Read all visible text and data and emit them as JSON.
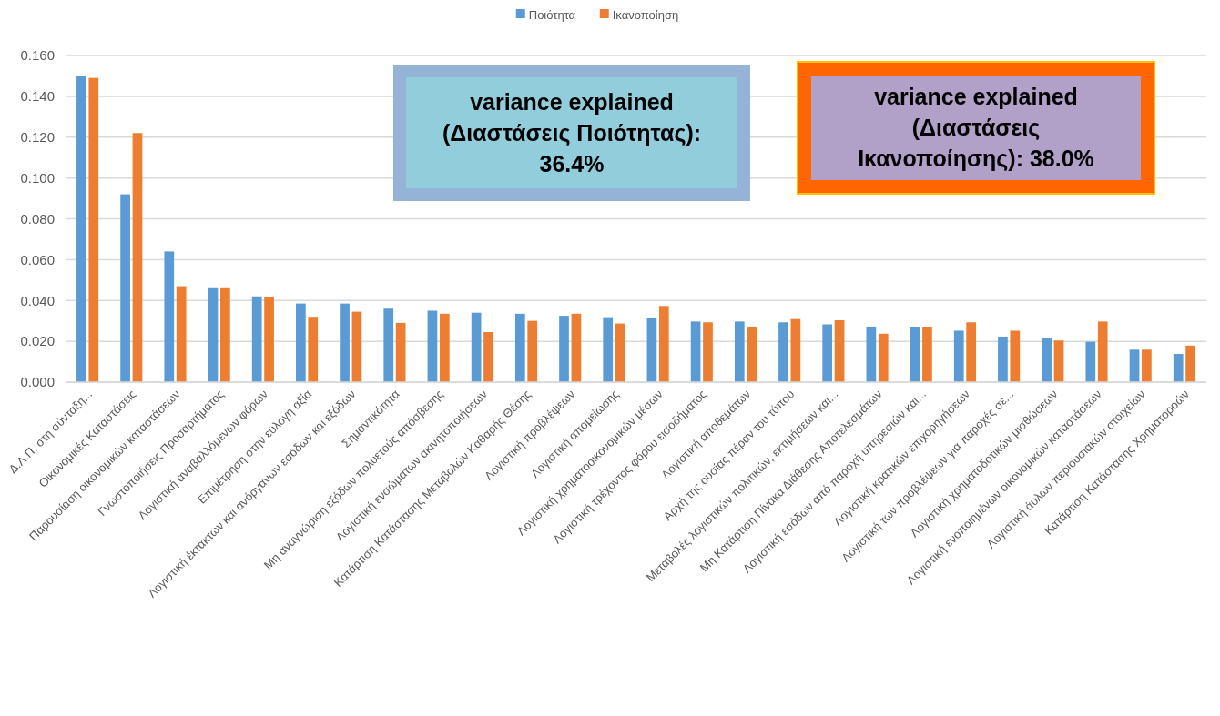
{
  "chart_data": {
    "type": "bar",
    "categories": [
      "Δ.Λ.Π. στη σύνταξη...",
      "Οικονομικές Καταστάσεις",
      "Παρουσίαση οικονομικών καταστάσεων",
      "Γνωστοποιήσεις Προσαρτήματος",
      "Λογιστική αναβαλλόμενων φόρων",
      "Επιμέτρηση στην εύλογη αξία",
      "Λογιστική έκτακτων και ανόργανων εσόδων και εξόδων",
      "Σημαντικότητα",
      "Μη αναγνώριση εξόδων πολυετούς απόσβεσης",
      "Λογιστική ενσώματων ακινητοποιήσεων",
      "Κατάρτιση Κατάστασης Μεταβολών Καθαρής Θέσης",
      "Λογιστική προβλέψεων",
      "Λογιστική απομείωσης",
      "Λογιστική χρηματοοικονομικών μέσων",
      "Λογιστική τρέχοντος φόρου εισοδήματος",
      "Λογιστική αποθεμάτων",
      "Αρχή της ουσίας πέραν του τύπου",
      "Μεταβολές λογιστικών πολιτικών, εκτιμήσεων και...",
      "Μη Κατάρτιση Πίνακα Διάθεσης Αποτελεσμάτων",
      "Λογιστική εσόδων από παροχή υπηρεσιών και...",
      "Λογιστική κρατικών επιχορηγήσεων",
      "Λογιστική των προβλέψεων για παροχές σε...",
      "Λογιστική χρηματοδοτικών μισθώσεων",
      "Λογιστική ενοποιημένων οικονομικών καταστάσεων",
      "Λογιστική άυλων περιουσιακών στοιχείων",
      "Κατάρτιση Κατάστασης Χρηματοροών"
    ],
    "series": [
      {
        "name": "Ποιότητα",
        "color": "#5b9bd5",
        "values": [
          0.15,
          0.092,
          0.064,
          0.046,
          0.042,
          0.0385,
          0.0385,
          0.036,
          0.035,
          0.034,
          0.0335,
          0.0325,
          0.0318,
          0.0313,
          0.0297,
          0.0297,
          0.0293,
          0.0283,
          0.0272,
          0.0272,
          0.0252,
          0.0223,
          0.0214,
          0.0198,
          0.0159,
          0.0138
        ]
      },
      {
        "name": "Ικανοποίηση",
        "color": "#ed7d31",
        "values": [
          0.149,
          0.122,
          0.047,
          0.046,
          0.0415,
          0.032,
          0.0345,
          0.029,
          0.0335,
          0.0245,
          0.03,
          0.0335,
          0.0287,
          0.0373,
          0.0293,
          0.0272,
          0.0309,
          0.0303,
          0.0237,
          0.0272,
          0.0293,
          0.0252,
          0.0204,
          0.0297,
          0.0159,
          0.0179
        ]
      }
    ],
    "ylim": [
      0,
      0.16
    ],
    "yticks": [
      {
        "value": 0,
        "label": "0.000"
      },
      {
        "value": 0.02,
        "label": "0.020"
      },
      {
        "value": 0.04,
        "label": "0.040"
      },
      {
        "value": 0.06,
        "label": "0.060"
      },
      {
        "value": 0.08,
        "label": "0.080"
      },
      {
        "value": 0.1,
        "label": "0.100"
      },
      {
        "value": 0.12,
        "label": "0.120"
      },
      {
        "value": 0.14,
        "label": "0.140"
      },
      {
        "value": 0.16,
        "label": "0.160"
      }
    ],
    "grid": "y",
    "legend": "top",
    "annotations": [
      "variance explained (Διαστάσεις Ποιότητας): 36.4%",
      "variance explained (Διαστάσεις Ικανοποίησης): 38.0%"
    ]
  }
}
